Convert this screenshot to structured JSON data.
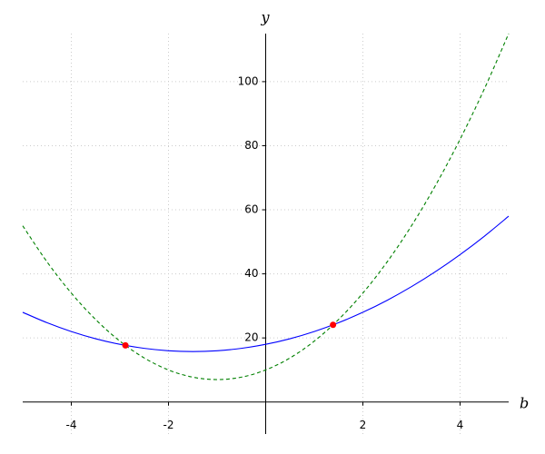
{
  "chart_data": {
    "type": "line",
    "x_label": "b",
    "y_label": "y",
    "x": [
      -5,
      -4.5,
      -4,
      -3.5,
      -3,
      -2.5,
      -2,
      -1.5,
      -1,
      -0.5,
      0,
      0.5,
      1,
      1.5,
      2,
      2.5,
      3,
      3.5,
      4,
      4.5,
      5
    ],
    "series": [
      {
        "color": "#0000ff",
        "dashed": false,
        "values": [
          28,
          24.75,
          22,
          19.75,
          18,
          16.75,
          16,
          15.75,
          16,
          16.75,
          18,
          19.75,
          22,
          24.75,
          28,
          31.75,
          36,
          40.75,
          46,
          51.75,
          58
        ]
      },
      {
        "color": "#008000",
        "dashed": true,
        "values": [
          55,
          43.75,
          34,
          25.75,
          19,
          13.75,
          10,
          7.75,
          7,
          7.75,
          10,
          13.75,
          19,
          25.75,
          34,
          43.75,
          55,
          67.75,
          82,
          97.75,
          115
        ]
      }
    ],
    "markers": {
      "color": "#ff0000",
      "x": [
        -2.886,
        1.386
      ],
      "values": [
        17.67,
        24.08
      ]
    },
    "xlim": [
      -5,
      5
    ],
    "ylim": [
      -10,
      115
    ],
    "xticks": [
      -4,
      -2,
      2,
      4
    ],
    "yticks": [
      20,
      40,
      60,
      80,
      100
    ],
    "grid": true
  }
}
